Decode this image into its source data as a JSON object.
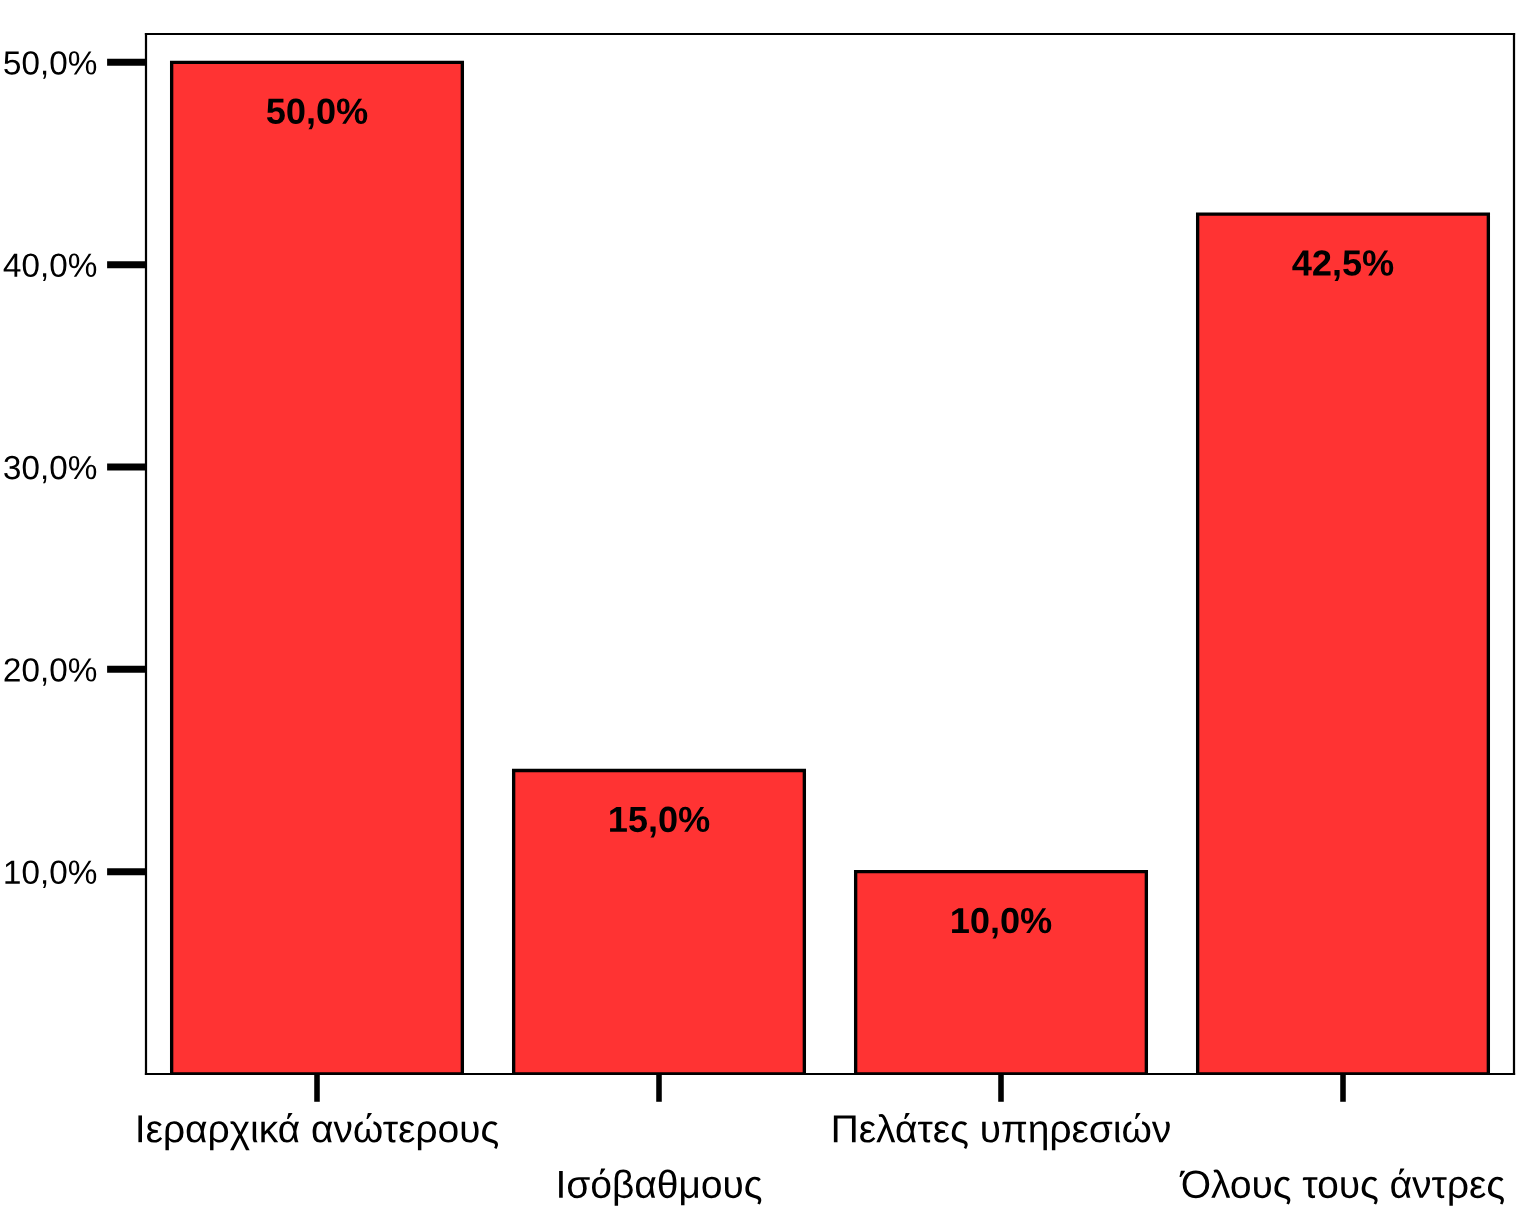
{
  "chart_data": {
    "type": "bar",
    "categories": [
      "Ιεραρχικά ανώτερους",
      "Ισόβαθμους",
      "Πελάτες υπηρεσιών",
      "Όλους τους άντρες"
    ],
    "values": [
      50.0,
      15.0,
      10.0,
      42.5
    ],
    "color": "#ff3333",
    "value_labels": [
      "50,0%",
      "15,0%",
      "10,0%",
      "42,5%"
    ],
    "ylim": [
      0,
      51.4
    ],
    "yticks": [
      {
        "value": 10,
        "label": "10,0%"
      },
      {
        "value": 20,
        "label": "20,0%"
      },
      {
        "value": 30,
        "label": "30,0%"
      },
      {
        "value": 40,
        "label": "40,0%"
      },
      {
        "value": 50,
        "label": "50,0%"
      }
    ],
    "grid": false,
    "legend": false
  }
}
